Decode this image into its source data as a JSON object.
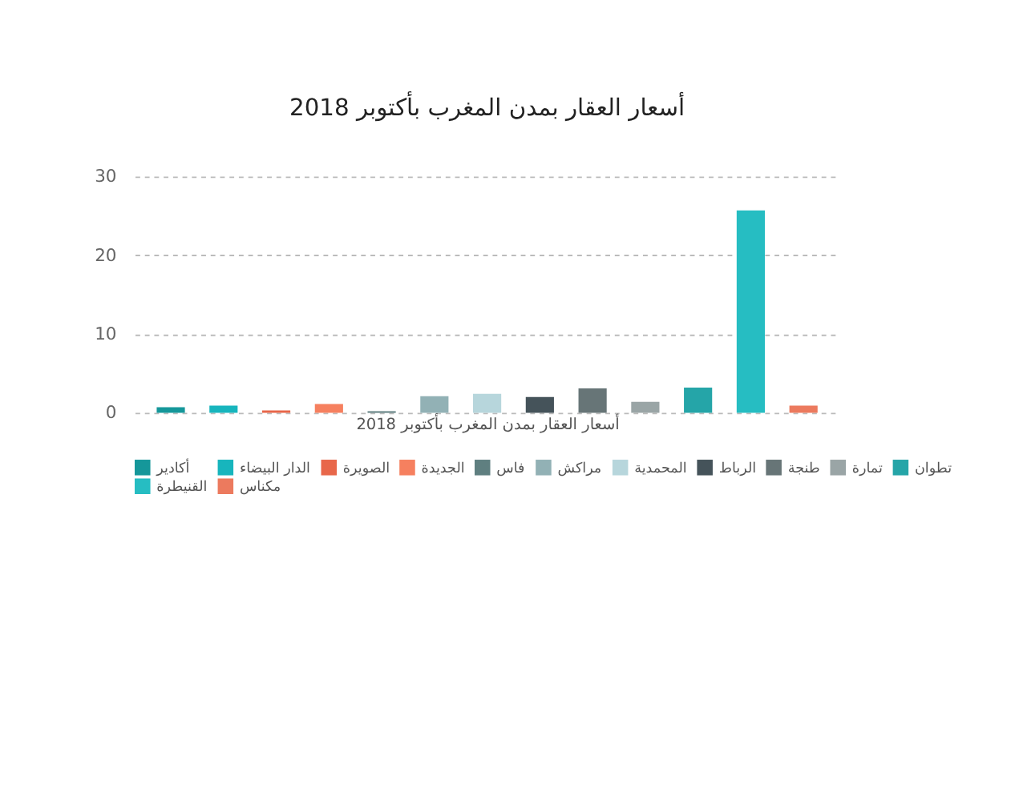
{
  "chart_data": {
    "type": "bar",
    "title": "أسعار العقار بمدن المغرب بأكتوبر 2018",
    "xlabel": "أسعار العقار بمدن المغرب بأكتوبر 2018",
    "categories": [
      null
    ],
    "series": [
      {
        "name": "أكادير",
        "color": "#15979a",
        "values": [
          0.7
        ]
      },
      {
        "name": "الدار البيضاء",
        "color": "#17b5bd",
        "values": [
          0.9
        ]
      },
      {
        "name": "الصويرة",
        "color": "#e8674a",
        "values": [
          0.3
        ]
      },
      {
        "name": "الجديدة",
        "color": "#f6805f",
        "values": [
          1.1
        ]
      },
      {
        "name": "فاس",
        "color": "#5f7f80",
        "values": [
          0.2
        ]
      },
      {
        "name": "مراكش",
        "color": "#92b1b5",
        "values": [
          2.1
        ]
      },
      {
        "name": "المحمدية",
        "color": "#b7d6dc",
        "values": [
          2.4
        ]
      },
      {
        "name": "الرباط",
        "color": "#45535a",
        "values": [
          2.0
        ]
      },
      {
        "name": "طنجة",
        "color": "#677577",
        "values": [
          3.1
        ]
      },
      {
        "name": "تمارة",
        "color": "#9aa5a6",
        "values": [
          1.4
        ]
      },
      {
        "name": "تطوان",
        "color": "#25a5a8",
        "values": [
          3.2
        ]
      },
      {
        "name": "القنيطرة",
        "color": "#26bdc2",
        "values": [
          25.7
        ]
      },
      {
        "name": "مكناس",
        "color": "#ec7a5e",
        "values": [
          0.9
        ]
      }
    ],
    "ylim": [
      0,
      30
    ],
    "yticks": [
      0,
      10,
      20,
      30
    ],
    "grid": "y",
    "legend": "bottom",
    "tick_labels": "y"
  }
}
